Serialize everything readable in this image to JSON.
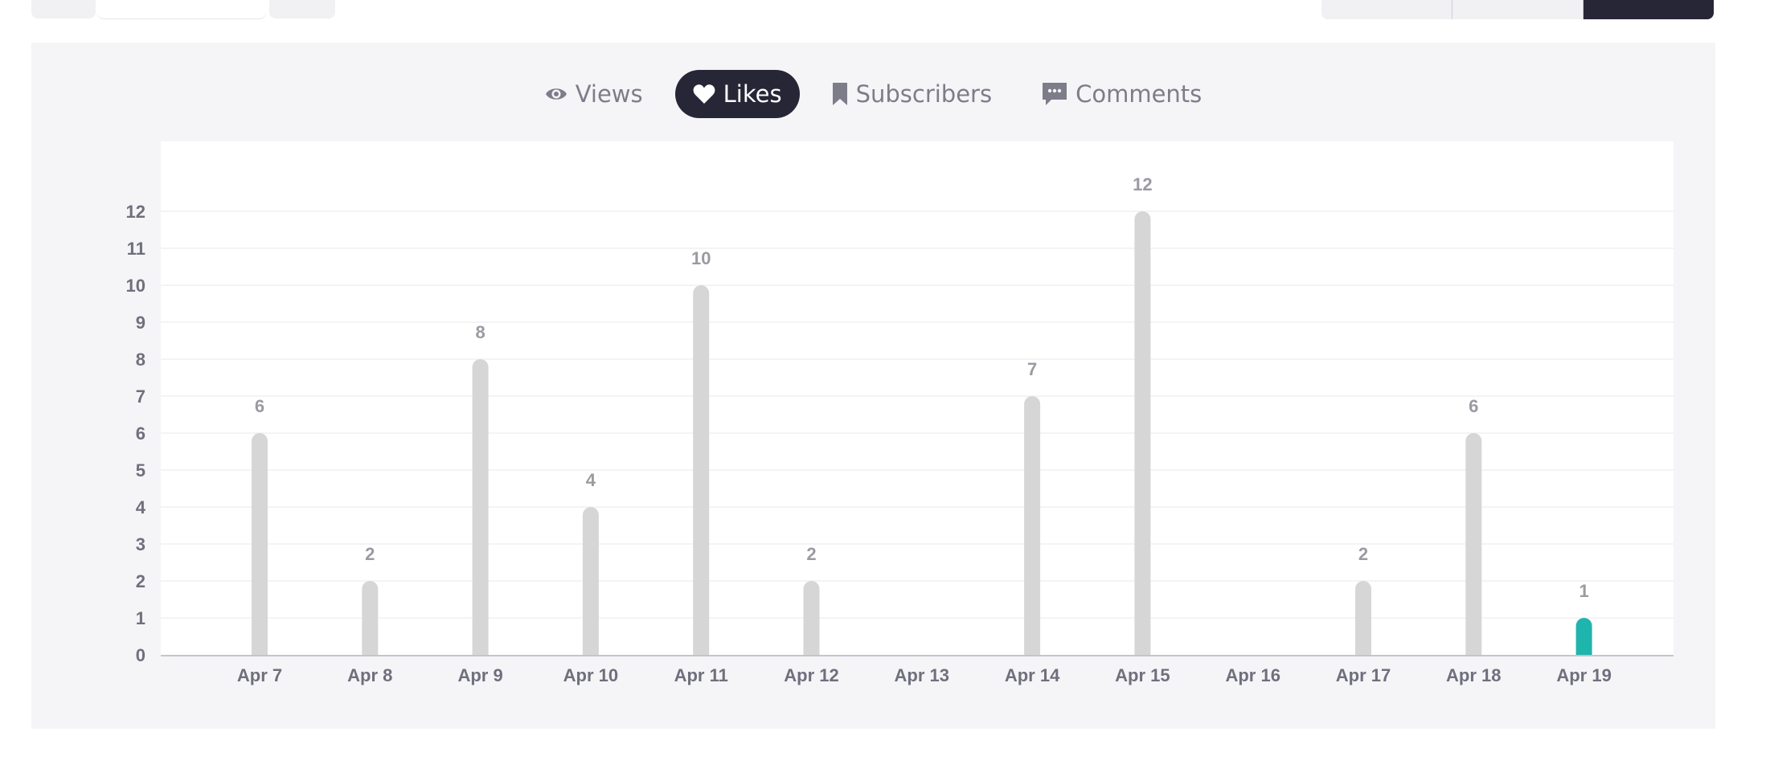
{
  "metric_tabs": [
    {
      "label": "Views",
      "icon": "eye-icon",
      "active": false
    },
    {
      "label": "Likes",
      "icon": "heart-icon",
      "active": true
    },
    {
      "label": "Subscribers",
      "icon": "bookmark-icon",
      "active": false
    },
    {
      "label": "Comments",
      "icon": "comment-icon",
      "active": false
    }
  ],
  "colors": {
    "bar": "#d6d6d6",
    "bar_highlight": "#1fb5ad",
    "active_tab": "#262637",
    "panel": "#f5f5f7"
  },
  "chart_data": {
    "type": "bar",
    "title": "",
    "xlabel": "",
    "ylabel": "",
    "categories": [
      "Apr 7",
      "Apr 8",
      "Apr 9",
      "Apr 10",
      "Apr 11",
      "Apr 12",
      "Apr 13",
      "Apr 14",
      "Apr 15",
      "Apr 16",
      "Apr 17",
      "Apr 18",
      "Apr 19"
    ],
    "values": [
      6,
      2,
      8,
      4,
      10,
      2,
      0,
      7,
      12,
      0,
      2,
      6,
      1
    ],
    "value_labels": [
      "6",
      "2",
      "8",
      "4",
      "10",
      "2",
      "",
      "7",
      "12",
      "",
      "2",
      "6",
      "1"
    ],
    "highlight_index": 12,
    "yticks": [
      0,
      1,
      2,
      3,
      4,
      5,
      6,
      7,
      8,
      9,
      10,
      11,
      12
    ],
    "ylim": [
      0,
      12
    ],
    "grid": true,
    "legend": "none"
  }
}
